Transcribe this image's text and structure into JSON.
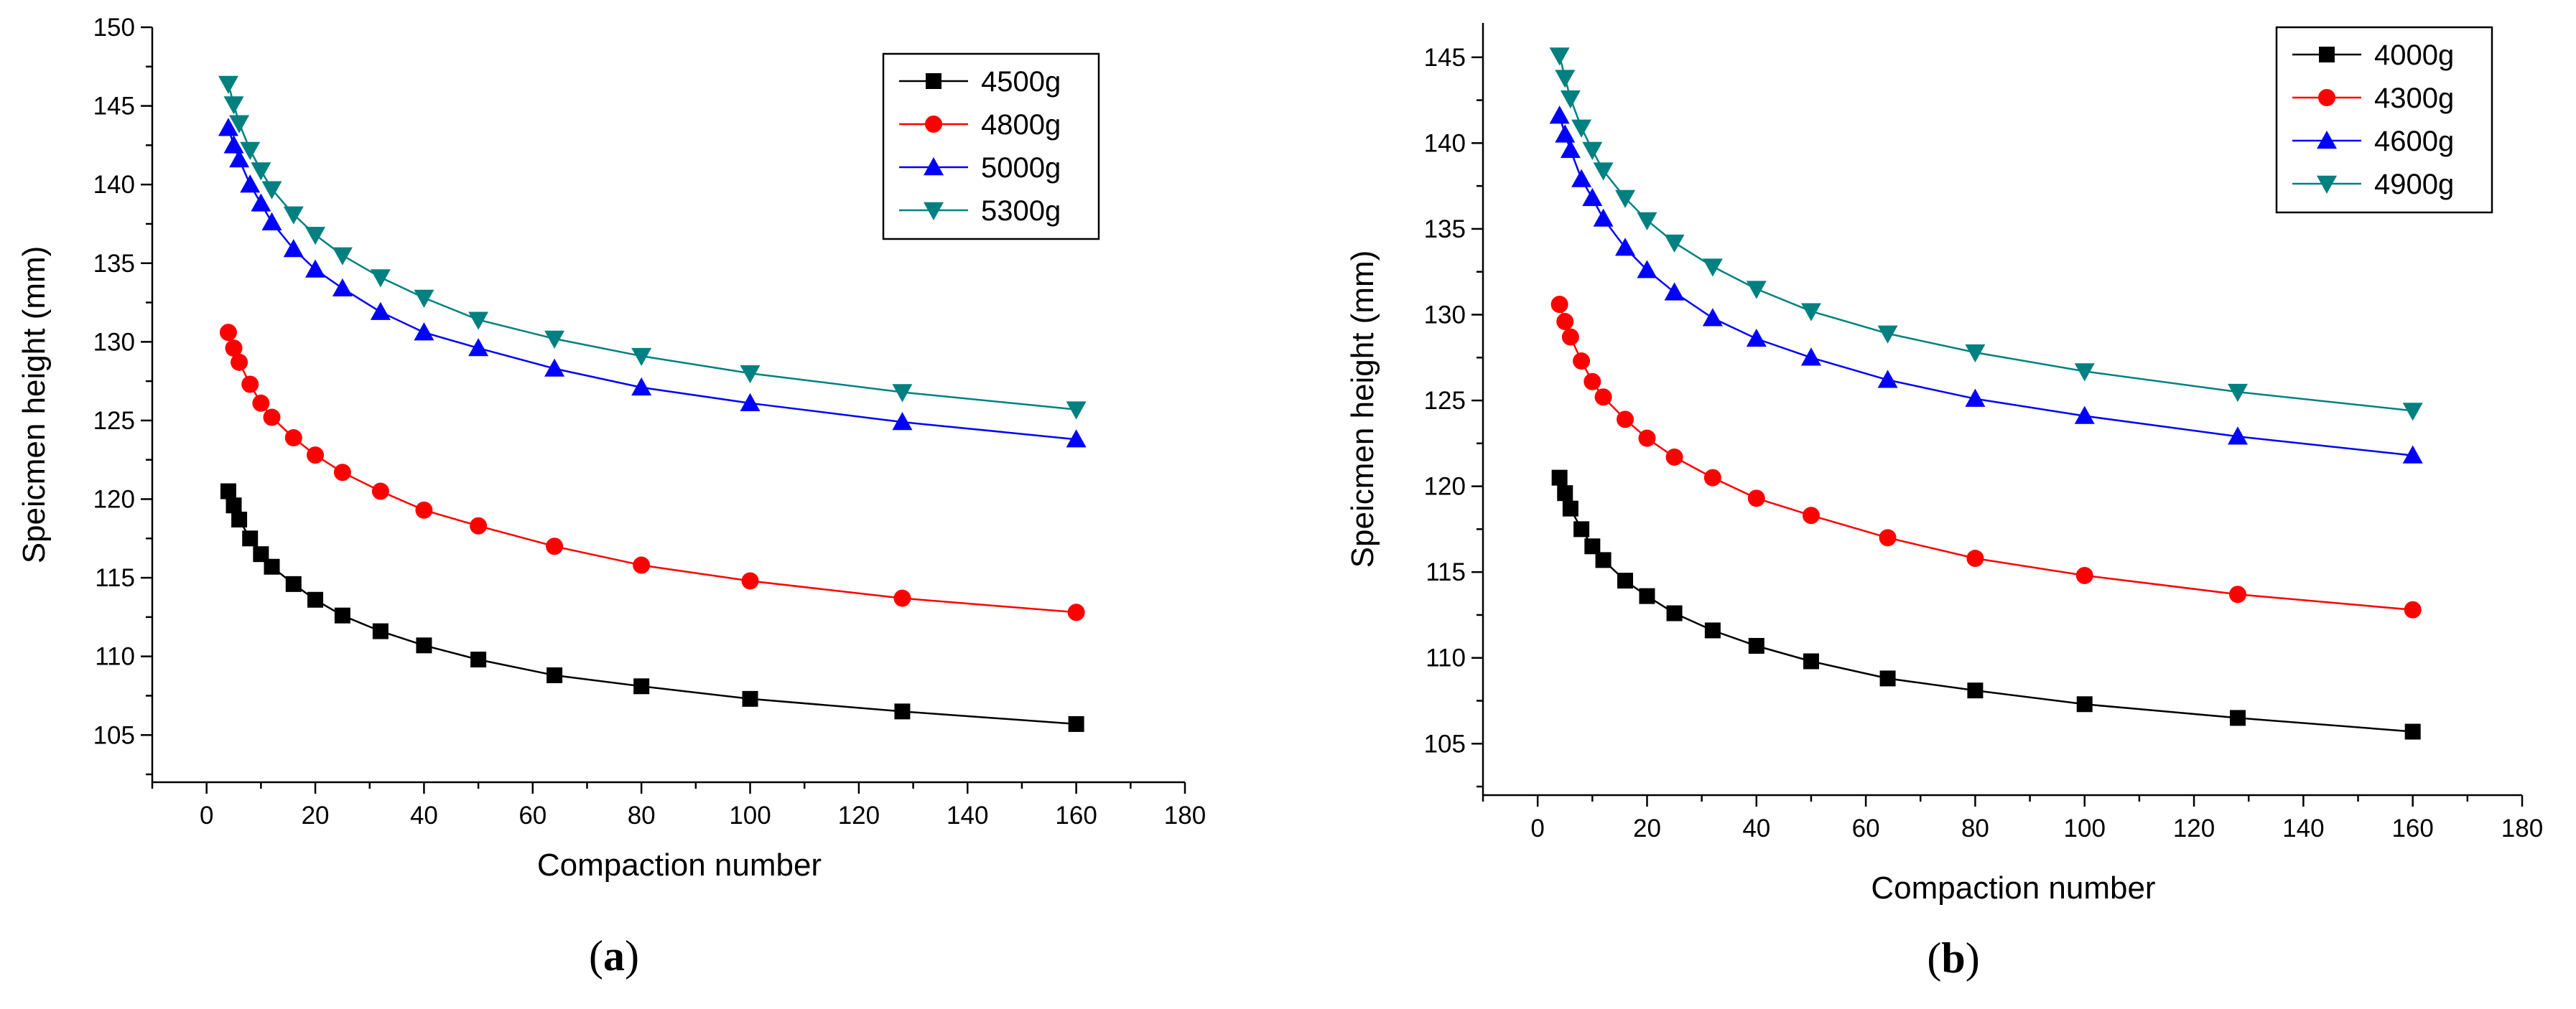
{
  "chart_data": [
    {
      "panel": "a",
      "caption": {
        "open": "(",
        "letter": "a",
        "close": ")"
      },
      "type": "line",
      "xlabel": "Compaction number",
      "ylabel": "Speicmen height (mm)",
      "xlim": [
        -10,
        180
      ],
      "ylim": [
        102,
        150
      ],
      "xticks": [
        0,
        20,
        40,
        60,
        80,
        100,
        120,
        140,
        160,
        180
      ],
      "yticks": [
        105,
        110,
        115,
        120,
        125,
        130,
        135,
        140,
        145,
        150
      ],
      "legend_position": "top-right",
      "x": [
        4,
        5,
        6,
        8,
        10,
        12,
        16,
        20,
        25,
        32,
        40,
        50,
        64,
        80,
        100,
        128,
        160
      ],
      "series": [
        {
          "name": "4500g",
          "color": "#000000",
          "marker": "square",
          "values": [
            120.5,
            119.6,
            118.7,
            117.5,
            116.5,
            115.7,
            114.6,
            113.6,
            112.6,
            111.6,
            110.7,
            109.8,
            108.8,
            108.1,
            107.3,
            106.5,
            105.7
          ]
        },
        {
          "name": "4800g",
          "color": "#ff0000",
          "marker": "circle",
          "values": [
            130.6,
            129.6,
            128.7,
            127.3,
            126.1,
            125.2,
            123.9,
            122.8,
            121.7,
            120.5,
            119.3,
            118.3,
            117.0,
            115.8,
            114.8,
            113.7,
            112.8
          ]
        },
        {
          "name": "5000g",
          "color": "#0000ff",
          "marker": "triangle-up",
          "values": [
            143.6,
            142.5,
            141.6,
            140.0,
            138.8,
            137.6,
            135.9,
            134.6,
            133.4,
            131.9,
            130.6,
            129.6,
            128.3,
            127.1,
            126.1,
            124.9,
            123.8
          ]
        },
        {
          "name": "5300g",
          "color": "#008080",
          "marker": "triangle-down",
          "values": [
            146.4,
            145.1,
            143.9,
            142.2,
            140.9,
            139.7,
            138.1,
            136.8,
            135.5,
            134.1,
            132.8,
            131.4,
            130.2,
            129.1,
            128.0,
            126.8,
            125.7
          ]
        }
      ]
    },
    {
      "panel": "b",
      "caption": {
        "open": "(",
        "letter": "b",
        "close": ")"
      },
      "type": "line",
      "xlabel": "Compaction number",
      "ylabel": "Speicmen height (mm)",
      "xlim": [
        -10,
        180
      ],
      "ylim": [
        102,
        147
      ],
      "xticks": [
        0,
        20,
        40,
        60,
        80,
        100,
        120,
        140,
        160,
        180
      ],
      "yticks": [
        105,
        110,
        115,
        120,
        125,
        130,
        135,
        140,
        145
      ],
      "legend_position": "top-right",
      "x": [
        4,
        5,
        6,
        8,
        10,
        12,
        16,
        20,
        25,
        32,
        40,
        50,
        64,
        80,
        100,
        128,
        160
      ],
      "series": [
        {
          "name": "4000g",
          "color": "#000000",
          "marker": "square",
          "values": [
            120.5,
            119.6,
            118.7,
            117.5,
            116.5,
            115.7,
            114.5,
            113.6,
            112.6,
            111.6,
            110.7,
            109.8,
            108.8,
            108.1,
            107.3,
            106.5,
            105.7
          ]
        },
        {
          "name": "4300g",
          "color": "#ff0000",
          "marker": "circle",
          "values": [
            130.6,
            129.6,
            128.7,
            127.3,
            126.1,
            125.2,
            123.9,
            122.8,
            121.7,
            120.5,
            119.3,
            118.3,
            117.0,
            115.8,
            114.8,
            113.7,
            112.8
          ]
        },
        {
          "name": "4600g",
          "color": "#0000ff",
          "marker": "triangle-up",
          "values": [
            141.6,
            140.5,
            139.6,
            137.9,
            136.8,
            135.6,
            133.9,
            132.6,
            131.3,
            129.8,
            128.6,
            127.5,
            126.2,
            125.1,
            124.1,
            122.9,
            121.8
          ]
        },
        {
          "name": "4900g",
          "color": "#008080",
          "marker": "triangle-down",
          "values": [
            145.1,
            143.8,
            142.6,
            140.9,
            139.6,
            138.4,
            136.8,
            135.5,
            134.2,
            132.8,
            131.5,
            130.2,
            128.9,
            127.8,
            126.7,
            125.5,
            124.4
          ]
        }
      ]
    }
  ]
}
